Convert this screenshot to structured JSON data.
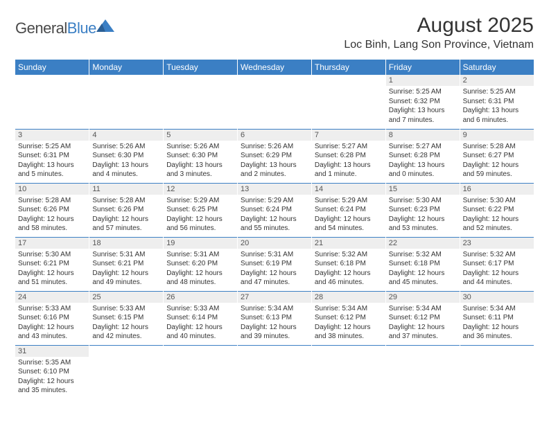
{
  "logo": {
    "text1": "General",
    "text2": "Blue"
  },
  "title": "August 2025",
  "location": "Loc Binh, Lang Son Province, Vietnam",
  "weekdays": [
    "Sunday",
    "Monday",
    "Tuesday",
    "Wednesday",
    "Thursday",
    "Friday",
    "Saturday"
  ],
  "colors": {
    "header_bg": "#3b7fc4",
    "header_text": "#ffffff",
    "daynum_bg": "#eeeeee",
    "row_border": "#3b7fc4",
    "text": "#333333"
  },
  "typography": {
    "title_fontsize": 30,
    "location_fontsize": 16,
    "weekday_fontsize": 12,
    "daynum_fontsize": 11,
    "cell_fontsize": 10
  },
  "layout": {
    "cols": 7,
    "rows": 6,
    "first_day_col": 5
  },
  "days": [
    {
      "n": 1,
      "sunrise": "5:25 AM",
      "sunset": "6:32 PM",
      "daylight": "13 hours and 7 minutes."
    },
    {
      "n": 2,
      "sunrise": "5:25 AM",
      "sunset": "6:31 PM",
      "daylight": "13 hours and 6 minutes."
    },
    {
      "n": 3,
      "sunrise": "5:25 AM",
      "sunset": "6:31 PM",
      "daylight": "13 hours and 5 minutes."
    },
    {
      "n": 4,
      "sunrise": "5:26 AM",
      "sunset": "6:30 PM",
      "daylight": "13 hours and 4 minutes."
    },
    {
      "n": 5,
      "sunrise": "5:26 AM",
      "sunset": "6:30 PM",
      "daylight": "13 hours and 3 minutes."
    },
    {
      "n": 6,
      "sunrise": "5:26 AM",
      "sunset": "6:29 PM",
      "daylight": "13 hours and 2 minutes."
    },
    {
      "n": 7,
      "sunrise": "5:27 AM",
      "sunset": "6:28 PM",
      "daylight": "13 hours and 1 minute."
    },
    {
      "n": 8,
      "sunrise": "5:27 AM",
      "sunset": "6:28 PM",
      "daylight": "13 hours and 0 minutes."
    },
    {
      "n": 9,
      "sunrise": "5:28 AM",
      "sunset": "6:27 PM",
      "daylight": "12 hours and 59 minutes."
    },
    {
      "n": 10,
      "sunrise": "5:28 AM",
      "sunset": "6:26 PM",
      "daylight": "12 hours and 58 minutes."
    },
    {
      "n": 11,
      "sunrise": "5:28 AM",
      "sunset": "6:26 PM",
      "daylight": "12 hours and 57 minutes."
    },
    {
      "n": 12,
      "sunrise": "5:29 AM",
      "sunset": "6:25 PM",
      "daylight": "12 hours and 56 minutes."
    },
    {
      "n": 13,
      "sunrise": "5:29 AM",
      "sunset": "6:24 PM",
      "daylight": "12 hours and 55 minutes."
    },
    {
      "n": 14,
      "sunrise": "5:29 AM",
      "sunset": "6:24 PM",
      "daylight": "12 hours and 54 minutes."
    },
    {
      "n": 15,
      "sunrise": "5:30 AM",
      "sunset": "6:23 PM",
      "daylight": "12 hours and 53 minutes."
    },
    {
      "n": 16,
      "sunrise": "5:30 AM",
      "sunset": "6:22 PM",
      "daylight": "12 hours and 52 minutes."
    },
    {
      "n": 17,
      "sunrise": "5:30 AM",
      "sunset": "6:21 PM",
      "daylight": "12 hours and 51 minutes."
    },
    {
      "n": 18,
      "sunrise": "5:31 AM",
      "sunset": "6:21 PM",
      "daylight": "12 hours and 49 minutes."
    },
    {
      "n": 19,
      "sunrise": "5:31 AM",
      "sunset": "6:20 PM",
      "daylight": "12 hours and 48 minutes."
    },
    {
      "n": 20,
      "sunrise": "5:31 AM",
      "sunset": "6:19 PM",
      "daylight": "12 hours and 47 minutes."
    },
    {
      "n": 21,
      "sunrise": "5:32 AM",
      "sunset": "6:18 PM",
      "daylight": "12 hours and 46 minutes."
    },
    {
      "n": 22,
      "sunrise": "5:32 AM",
      "sunset": "6:18 PM",
      "daylight": "12 hours and 45 minutes."
    },
    {
      "n": 23,
      "sunrise": "5:32 AM",
      "sunset": "6:17 PM",
      "daylight": "12 hours and 44 minutes."
    },
    {
      "n": 24,
      "sunrise": "5:33 AM",
      "sunset": "6:16 PM",
      "daylight": "12 hours and 43 minutes."
    },
    {
      "n": 25,
      "sunrise": "5:33 AM",
      "sunset": "6:15 PM",
      "daylight": "12 hours and 42 minutes."
    },
    {
      "n": 26,
      "sunrise": "5:33 AM",
      "sunset": "6:14 PM",
      "daylight": "12 hours and 40 minutes."
    },
    {
      "n": 27,
      "sunrise": "5:34 AM",
      "sunset": "6:13 PM",
      "daylight": "12 hours and 39 minutes."
    },
    {
      "n": 28,
      "sunrise": "5:34 AM",
      "sunset": "6:12 PM",
      "daylight": "12 hours and 38 minutes."
    },
    {
      "n": 29,
      "sunrise": "5:34 AM",
      "sunset": "6:12 PM",
      "daylight": "12 hours and 37 minutes."
    },
    {
      "n": 30,
      "sunrise": "5:34 AM",
      "sunset": "6:11 PM",
      "daylight": "12 hours and 36 minutes."
    },
    {
      "n": 31,
      "sunrise": "5:35 AM",
      "sunset": "6:10 PM",
      "daylight": "12 hours and 35 minutes."
    }
  ],
  "labels": {
    "sunrise": "Sunrise: ",
    "sunset": "Sunset: ",
    "daylight": "Daylight: "
  }
}
